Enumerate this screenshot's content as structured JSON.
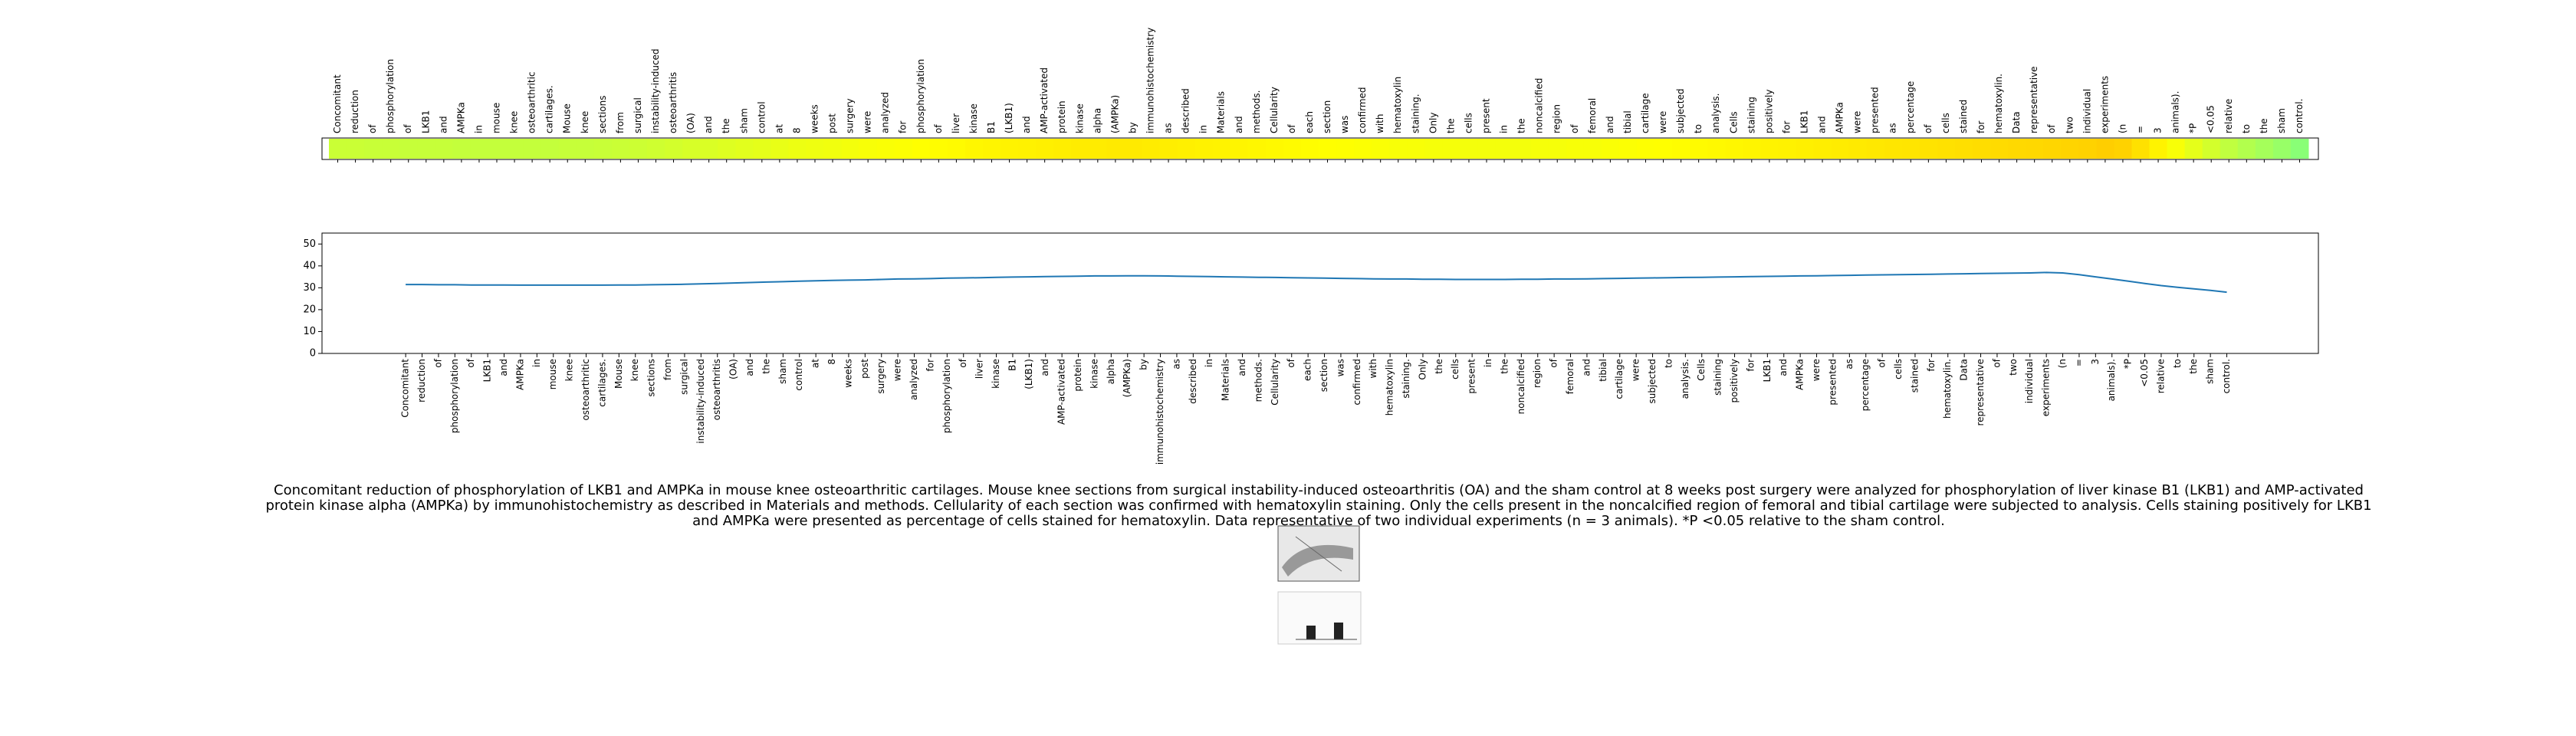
{
  "chart_data": {
    "type": "line",
    "categories": [
      "Concomitant",
      "reduction",
      "of",
      "phosphorylation",
      "of",
      "LKB1",
      "and",
      "AMPKa",
      "in",
      "mouse",
      "knee",
      "osteoarthritic",
      "cartilages.",
      "Mouse",
      "knee",
      "sections",
      "from",
      "surgical",
      "instability-induced",
      "osteoarthritis",
      "(OA)",
      "and",
      "the",
      "sham",
      "control",
      "at",
      "8",
      "weeks",
      "post",
      "surgery",
      "were",
      "analyzed",
      "for",
      "phosphorylation",
      "of",
      "liver",
      "kinase",
      "B1",
      "(LKB1)",
      "and",
      "AMP-activated",
      "protein",
      "kinase",
      "alpha",
      "(AMPKa)",
      "by",
      "immunohistochemistry",
      "as",
      "described",
      "in",
      "Materials",
      "and",
      "methods.",
      "Cellularity",
      "of",
      "each",
      "section",
      "was",
      "confirmed",
      "with",
      "hematoxylin",
      "staining.",
      "Only",
      "the",
      "cells",
      "present",
      "in",
      "the",
      "noncalcified",
      "region",
      "of",
      "femoral",
      "and",
      "tibial",
      "cartilage",
      "were",
      "subjected",
      "to",
      "analysis.",
      "Cells",
      "staining",
      "positively",
      "for",
      "LKB1",
      "and",
      "AMPKa",
      "were",
      "presented",
      "as",
      "percentage",
      "of",
      "cells",
      "stained",
      "for",
      "hematoxylin.",
      "Data",
      "representative",
      "of",
      "two",
      "individual",
      "experiments",
      "(n",
      "=",
      "3",
      "animals).",
      "*P",
      "<0.05",
      "relative",
      "to",
      "the",
      "sham",
      "control."
    ],
    "values": [
      31.5,
      31.5,
      31.4,
      31.4,
      31.3,
      31.3,
      31.3,
      31.2,
      31.2,
      31.2,
      31.2,
      31.2,
      31.2,
      31.3,
      31.3,
      31.4,
      31.5,
      31.6,
      31.8,
      32.0,
      32.2,
      32.4,
      32.6,
      32.8,
      33.0,
      33.2,
      33.4,
      33.5,
      33.6,
      33.8,
      34.0,
      34.1,
      34.2,
      34.4,
      34.5,
      34.6,
      34.8,
      34.9,
      35.0,
      35.1,
      35.2,
      35.3,
      35.4,
      35.4,
      35.5,
      35.5,
      35.4,
      35.3,
      35.2,
      35.1,
      35.0,
      34.9,
      34.8,
      34.7,
      34.6,
      34.5,
      34.4,
      34.3,
      34.2,
      34.1,
      34.0,
      34.0,
      33.9,
      33.9,
      33.8,
      33.8,
      33.8,
      33.8,
      33.9,
      33.9,
      34.0,
      34.0,
      34.1,
      34.2,
      34.3,
      34.4,
      34.5,
      34.6,
      34.7,
      34.8,
      34.9,
      35.0,
      35.1,
      35.2,
      35.3,
      35.4,
      35.5,
      35.6,
      35.7,
      35.8,
      35.9,
      36.0,
      36.1,
      36.2,
      36.3,
      36.4,
      36.5,
      36.6,
      36.7,
      36.8,
      37.0,
      36.8,
      36.0,
      35.0,
      34.0,
      33.0,
      32.0,
      31.0,
      30.2,
      29.5,
      28.8,
      28.0
    ],
    "color": "#1f77b4",
    "colormap": "jet",
    "ylim": [
      0,
      55
    ],
    "yticks": [
      0,
      10,
      20,
      30,
      40,
      50
    ],
    "caption": "Concomitant reduction of phosphorylation of LKB1 and AMPKa in mouse knee osteoarthritic cartilages. Mouse knee sections from surgical instability-induced osteoarthritis (OA) and the sham control at 8 weeks post surgery were analyzed for phosphorylation of liver kinase B1 (LKB1) and AMP-activated protein kinase alpha (AMPKa) by immunohistochemistry as described in Materials and methods. Cellularity of each section was confirmed with hematoxylin staining. Only the cells present in the noncalcified region of femoral and tibial cartilage were subjected to analysis. Cells staining positively for LKB1 and AMPKa were presented as percentage of cells stained for hematoxylin. Data representative of two individual experiments (n = 3 animals). *P <0.05 relative to the sham control."
  }
}
